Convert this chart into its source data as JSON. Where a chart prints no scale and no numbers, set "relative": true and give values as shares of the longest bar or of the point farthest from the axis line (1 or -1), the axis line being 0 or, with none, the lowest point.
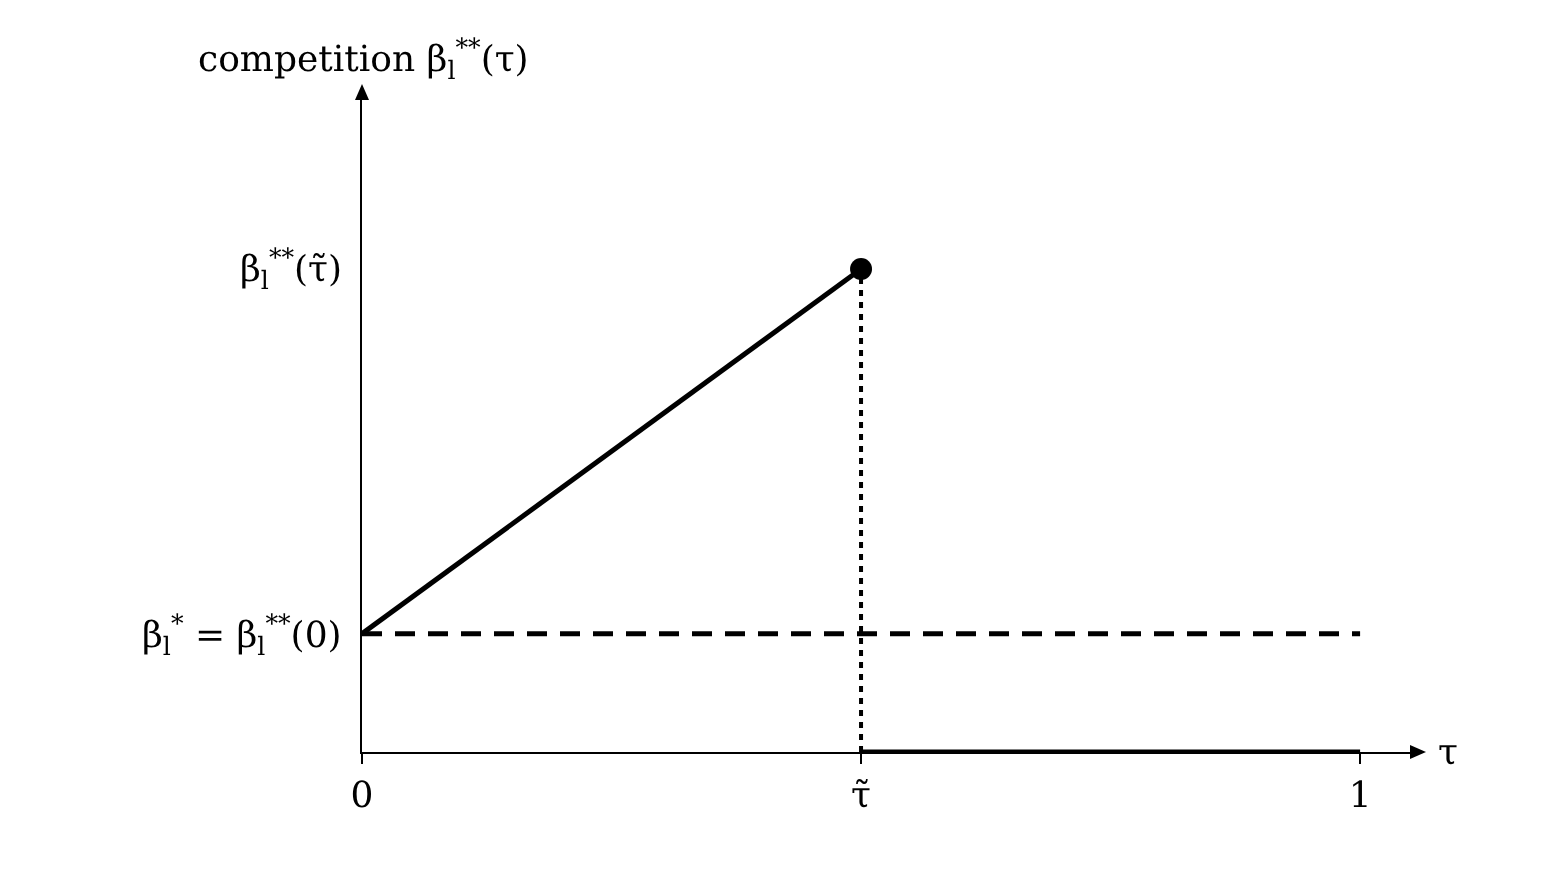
{
  "chart_data": {
    "type": "line",
    "relative": true,
    "xlabel": "τ",
    "xlim": [
      0,
      1.05
    ],
    "xticks": [
      0,
      {
        "value": 0.5,
        "label": "τ̃"
      },
      1
    ],
    "series": [
      {
        "color": "#000000",
        "x": [
          0,
          0.5
        ],
        "values": [
          0.245,
          1
        ],
        "line_style": "solid"
      },
      {
        "color": "#000000",
        "x": [
          0,
          1
        ],
        "values": [
          0.245,
          0.245
        ],
        "line_style": "dashed"
      },
      {
        "color": "#000000",
        "x": [
          0.5,
          0.5
        ],
        "values": [
          0,
          1
        ],
        "line_style": "dotted"
      },
      {
        "color": "#000000",
        "x": [
          0.5,
          1
        ],
        "values": [
          0,
          0
        ],
        "line_style": "solid"
      },
      {
        "type": "scatter",
        "marker": "circle",
        "color": "#000000",
        "x": [
          0.5
        ],
        "values": [
          1
        ]
      }
    ],
    "annotations": [
      "competition β$_{l}$$^{**}$(τ)",
      "β$_{l}$$^{**}$(τ̃)",
      "β$_{l}$$^{*}$ = β$_{l}$$^{**}$(0)"
    ]
  }
}
